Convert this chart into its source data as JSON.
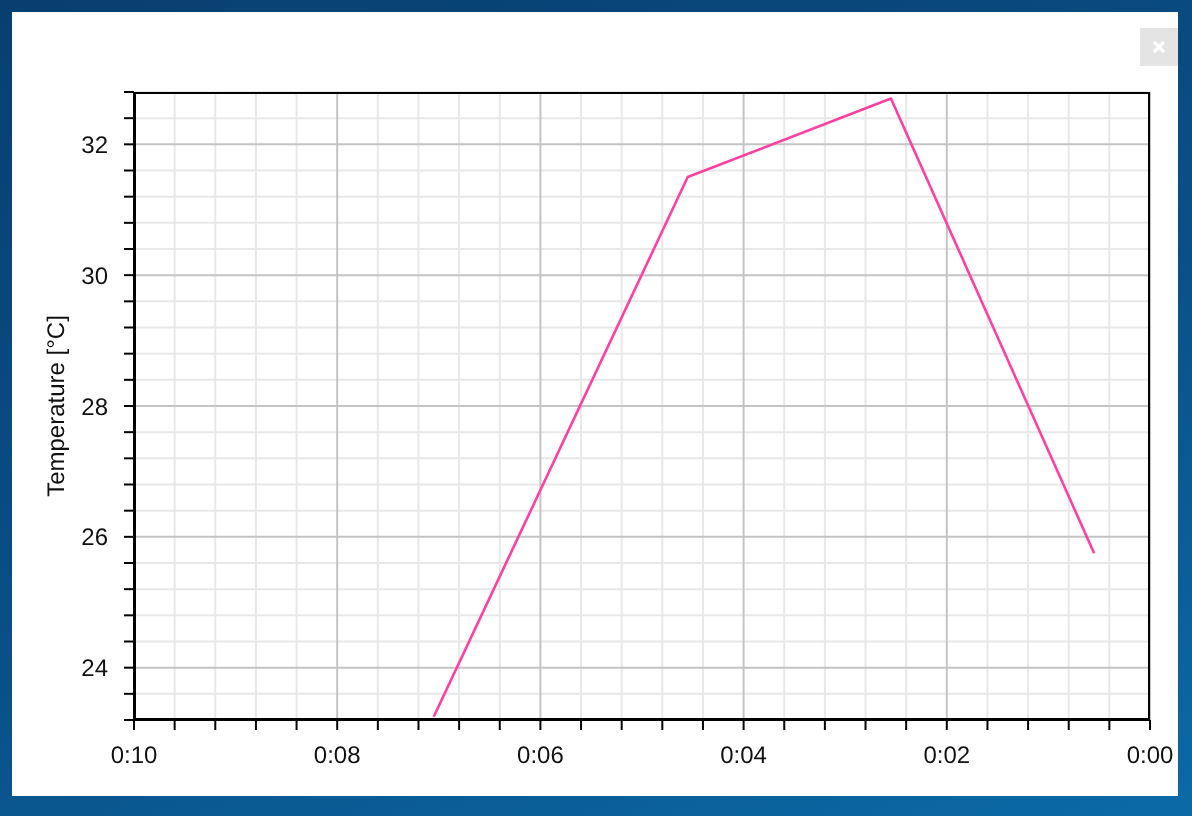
{
  "chart_data": {
    "type": "line",
    "ylabel": "Temperature [°C]",
    "x": [
      7.05,
      4.55,
      2.55,
      0.55
    ],
    "series": [
      {
        "color": "#ff40a0",
        "values": [
          23.25,
          31.5,
          32.7,
          25.75
        ]
      }
    ],
    "xlim": [
      10,
      0
    ],
    "xticks": [
      {
        "value": 10,
        "label": "0:10"
      },
      {
        "value": 9.6,
        "label": null
      },
      {
        "value": 9.2,
        "label": null
      },
      {
        "value": 8.8,
        "label": null
      },
      {
        "value": 8.4,
        "label": null
      },
      {
        "value": 8,
        "label": "0:08"
      },
      {
        "value": 7.6,
        "label": null
      },
      {
        "value": 7.2,
        "label": null
      },
      {
        "value": 6.8,
        "label": null
      },
      {
        "value": 6.4,
        "label": null
      },
      {
        "value": 6,
        "label": "0:06"
      },
      {
        "value": 5.6,
        "label": null
      },
      {
        "value": 5.2,
        "label": null
      },
      {
        "value": 4.8,
        "label": null
      },
      {
        "value": 4.4,
        "label": null
      },
      {
        "value": 4,
        "label": "0:04"
      },
      {
        "value": 3.6,
        "label": null
      },
      {
        "value": 3.2,
        "label": null
      },
      {
        "value": 2.8,
        "label": null
      },
      {
        "value": 2.4,
        "label": null
      },
      {
        "value": 2,
        "label": "0:02"
      },
      {
        "value": 1.6,
        "label": null
      },
      {
        "value": 1.2,
        "label": null
      },
      {
        "value": 0.8,
        "label": null
      },
      {
        "value": 0.4,
        "label": null
      },
      {
        "value": 0,
        "label": "0:00"
      }
    ],
    "ylim": [
      23.2,
      32.8
    ],
    "yticks": [
      {
        "value": 23.2,
        "label": null
      },
      {
        "value": 23.6,
        "label": null
      },
      24,
      {
        "value": 24.4,
        "label": null
      },
      {
        "value": 24.8,
        "label": null
      },
      {
        "value": 25.2,
        "label": null
      },
      {
        "value": 25.6,
        "label": null
      },
      26,
      {
        "value": 26.4,
        "label": null
      },
      {
        "value": 26.8,
        "label": null
      },
      {
        "value": 27.2,
        "label": null
      },
      {
        "value": 27.6,
        "label": null
      },
      28,
      {
        "value": 28.4,
        "label": null
      },
      {
        "value": 28.8,
        "label": null
      },
      {
        "value": 29.2,
        "label": null
      },
      {
        "value": 29.6,
        "label": null
      },
      30,
      {
        "value": 30.4,
        "label": null
      },
      {
        "value": 30.8,
        "label": null
      },
      {
        "value": 31.2,
        "label": null
      },
      {
        "value": 31.6,
        "label": null
      },
      32,
      {
        "value": 32.4,
        "label": null
      },
      {
        "value": 32.8,
        "label": null
      }
    ],
    "grid": true,
    "line_style": "solid"
  }
}
